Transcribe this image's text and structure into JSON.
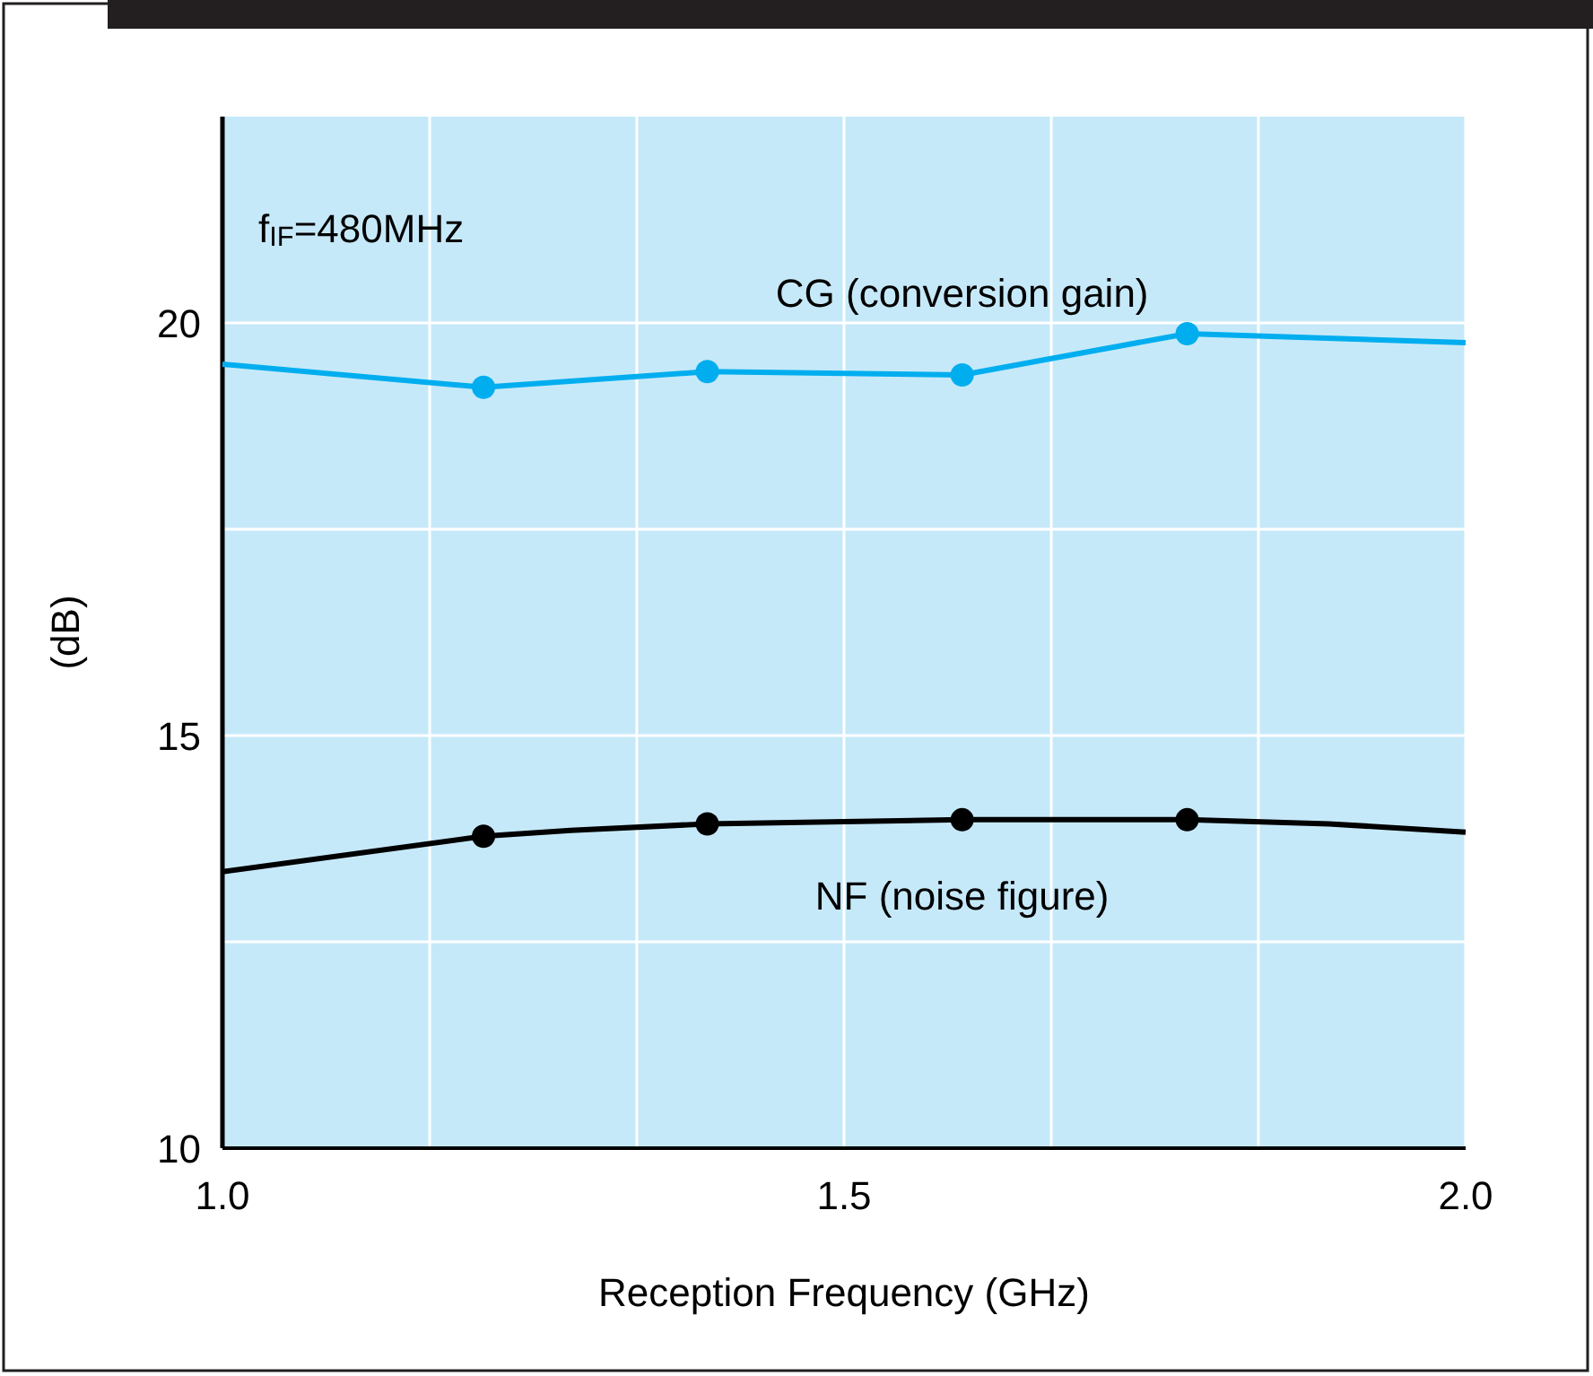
{
  "chart_data": {
    "type": "line",
    "xlabel": "Reception Frequency (GHz)",
    "ylabel": "(dB)",
    "xlim": [
      1.0,
      2.0
    ],
    "ylim": [
      10,
      22.5
    ],
    "xticks": [
      {
        "value": 1.0,
        "label": "1.0"
      },
      {
        "value": 1.1667,
        "label": null
      },
      {
        "value": 1.3333,
        "label": null
      },
      {
        "value": 1.5,
        "label": "1.5"
      },
      {
        "value": 1.6667,
        "label": null
      },
      {
        "value": 1.8333,
        "label": null
      },
      {
        "value": 2.0,
        "label": "2.0"
      }
    ],
    "yticks": [
      10,
      {
        "value": 12.5,
        "label": null
      },
      15,
      {
        "value": 17.5,
        "label": null
      },
      20
    ],
    "grid": true,
    "annotations": [
      "f$_{IF}$=480MHz"
    ],
    "series": [
      {
        "name": "CG (conversion gain)",
        "color": "#00aeef",
        "marker": "none",
        "x": [
          1.0,
          1.21,
          1.39,
          1.595,
          1.776,
          2.0
        ],
        "values": [
          19.5,
          19.22,
          19.41,
          19.37,
          19.87,
          19.76
        ]
      },
      {
        "color": "#00aeef",
        "type": "scatter",
        "marker": "circle",
        "x": [
          1.21,
          1.39,
          1.595,
          1.776
        ],
        "values": [
          19.22,
          19.41,
          19.37,
          19.87
        ]
      },
      {
        "name": "NF (noise figure)",
        "color": "#000000",
        "marker": "none",
        "x": [
          1.0,
          1.21,
          1.28,
          1.39,
          1.595,
          1.776,
          1.89,
          2.0
        ],
        "values": [
          13.35,
          13.78,
          13.85,
          13.93,
          13.98,
          13.98,
          13.93,
          13.83
        ]
      },
      {
        "color": "#000000",
        "type": "scatter",
        "marker": "circle",
        "x": [
          1.21,
          1.39,
          1.595,
          1.776
        ],
        "values": [
          13.78,
          13.93,
          13.98,
          13.98
        ]
      }
    ]
  }
}
